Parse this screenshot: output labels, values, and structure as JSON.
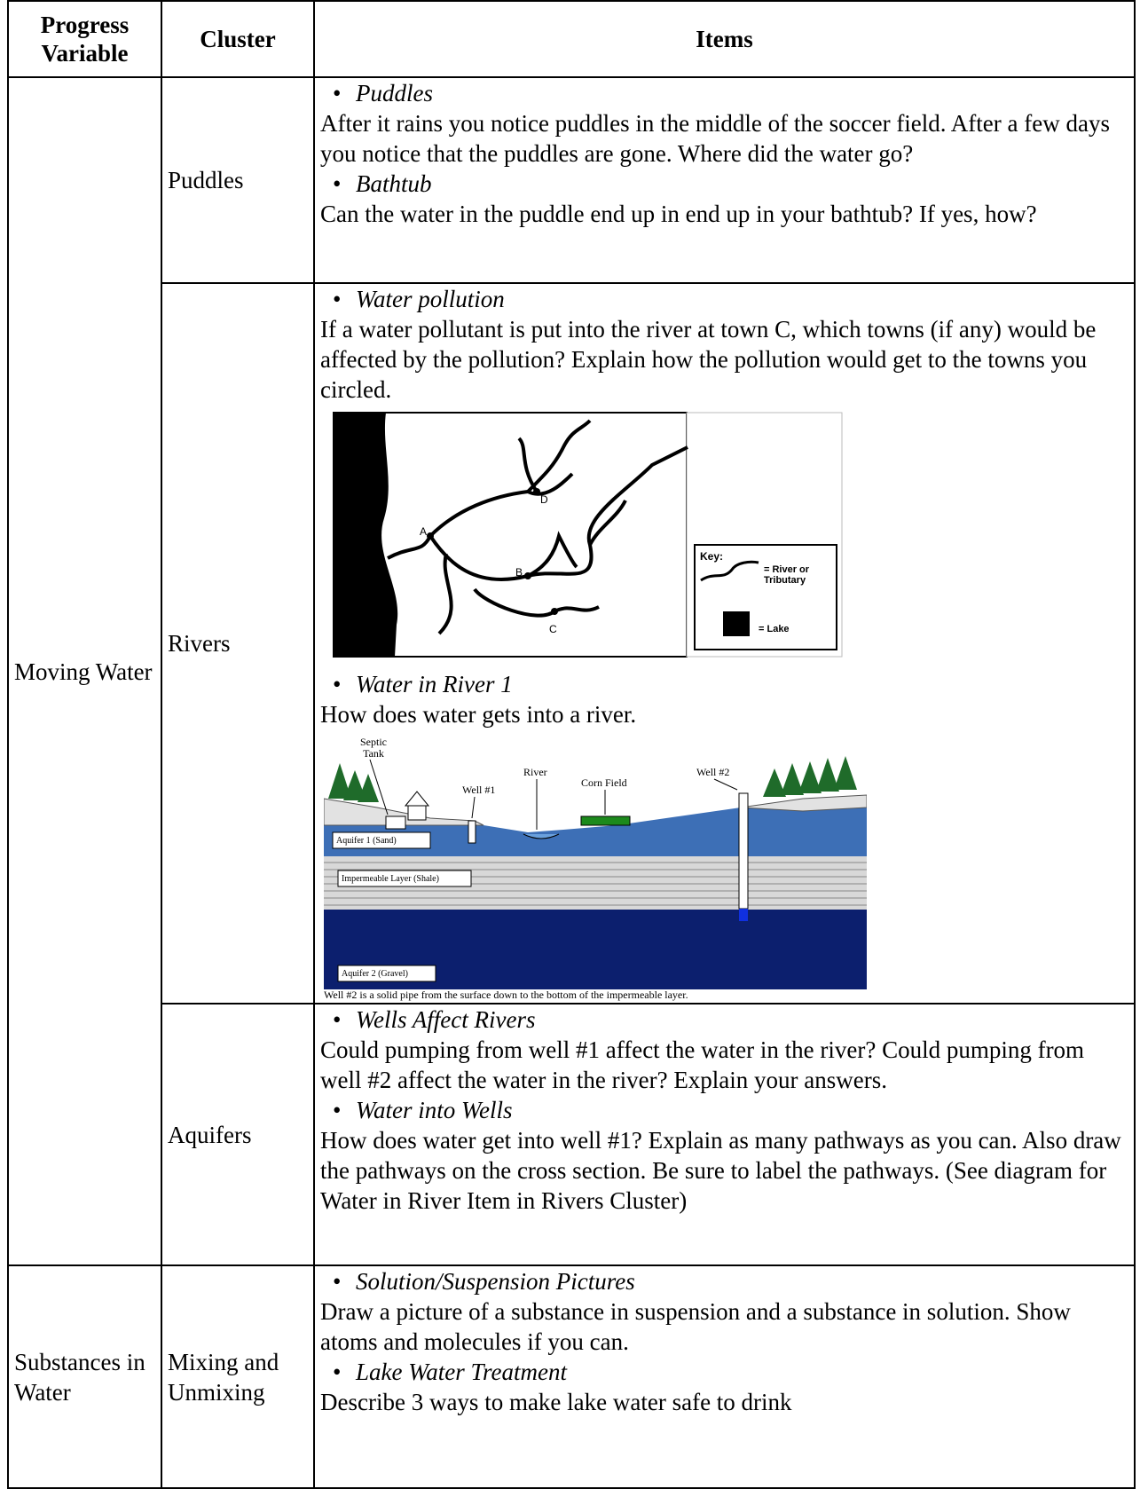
{
  "table": {
    "headers": [
      "Progress Variable",
      "Cluster",
      "Items"
    ],
    "sections": [
      {
        "variable": "Moving Water",
        "clusters": [
          {
            "name": "Puddles",
            "items": [
              {
                "title": "Puddles",
                "text": "After it rains you notice puddles in the middle of the soccer field. After a few days you notice that the puddles are gone.  Where did the water go?"
              },
              {
                "title": "Bathtub",
                "text": "Can the water in the puddle end up in end up in your bathtub? If yes, how?"
              }
            ]
          },
          {
            "name": "Rivers",
            "items": [
              {
                "title": "Water pollution",
                "text": "If a water pollutant is put into the river at town C, which towns (if any) would be affected by the pollution?  Explain how the pollution would get to the towns you circled.",
                "figure": {
                  "towns": [
                    "A",
                    "B",
                    "C",
                    "D"
                  ],
                  "key_title": "Key:",
                  "key_river": "= River or Tributary",
                  "key_lake": "= Lake"
                }
              },
              {
                "title": "Water in River 1",
                "text": "How does water gets into a river.",
                "figure": {
                  "septic_tank": "Septic Tank",
                  "river": "River",
                  "well1": "Well #1",
                  "corn_field": "Corn Field",
                  "well2": "Well #2",
                  "aquifer1": "Aquifer 1 (Sand)",
                  "shale": "Impermeable Layer (Shale)",
                  "aquifer2": "Aquifer 2 (Gravel)",
                  "caption": "Well #2 is a solid pipe from the surface down to the bottom of the impermeable  layer."
                }
              }
            ]
          },
          {
            "name": "Aquifers",
            "items": [
              {
                "title": "Wells Affect Rivers",
                "text": "Could pumping from well #1 affect the water in the river?  Could pumping from well #2 affect the water in the river? Explain your answers."
              },
              {
                "title": "Water into Wells",
                "text": "How does water get into well #1? Explain as many pathways as you can. Also draw the pathways on the cross section. Be sure to label the pathways. (See diagram for Water in River Item in Rivers Cluster)"
              }
            ]
          }
        ]
      },
      {
        "variable": "Substances in Water",
        "clusters": [
          {
            "name": "Mixing and Unmixing",
            "items": [
              {
                "title": "Solution/Suspension Pictures",
                "text": "Draw a picture of a substance in suspension and a substance in solution. Show atoms and molecules if you can."
              },
              {
                "title": "Lake Water Treatment",
                "text": "Describe 3 ways to make lake water safe to drink"
              }
            ]
          }
        ]
      }
    ]
  }
}
